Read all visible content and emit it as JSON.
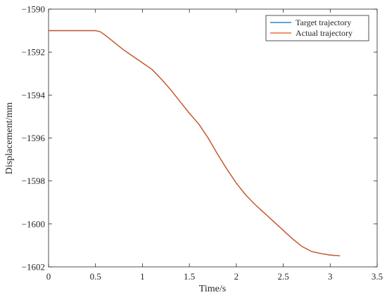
{
  "chart_data": {
    "type": "line",
    "xlabel": "Time/s",
    "ylabel": "Displacement/mm",
    "xlim": [
      0,
      3.5
    ],
    "ylim": [
      -1602,
      -1590
    ],
    "xticks": [
      0,
      0.5,
      1,
      1.5,
      2,
      2.5,
      3,
      3.5
    ],
    "xtick_labels": [
      "0",
      "0.5",
      "1",
      "1.5",
      "2",
      "2.5",
      "3",
      "3.5"
    ],
    "yticks": [
      -1602,
      -1600,
      -1598,
      -1596,
      -1594,
      -1592,
      -1590
    ],
    "ytick_labels": [
      "−1602",
      "−1600",
      "−1598",
      "−1596",
      "−1594",
      "−1592",
      "−1590"
    ],
    "grid": false,
    "legend_position": "top-right",
    "series": [
      {
        "name": "Target trajectory",
        "color": "#0072BD",
        "x": [
          0,
          0.1,
          0.2,
          0.3,
          0.4,
          0.5,
          0.55,
          0.6,
          0.7,
          0.8,
          0.9,
          1.0,
          1.1,
          1.2,
          1.3,
          1.4,
          1.5,
          1.6,
          1.7,
          1.8,
          1.9,
          2.0,
          2.1,
          2.2,
          2.3,
          2.4,
          2.5,
          2.6,
          2.7,
          2.8,
          2.9,
          3.0,
          3.1
        ],
        "y": [
          -1591.0,
          -1591.0,
          -1591.0,
          -1591.0,
          -1591.0,
          -1591.0,
          -1591.05,
          -1591.2,
          -1591.55,
          -1591.9,
          -1592.2,
          -1592.5,
          -1592.8,
          -1593.25,
          -1593.75,
          -1594.3,
          -1594.85,
          -1595.35,
          -1596.0,
          -1596.75,
          -1597.45,
          -1598.1,
          -1598.65,
          -1599.1,
          -1599.5,
          -1599.9,
          -1600.3,
          -1600.7,
          -1601.05,
          -1601.28,
          -1601.38,
          -1601.45,
          -1601.48
        ]
      },
      {
        "name": "Actual trajectory",
        "color": "#D95319",
        "x": [
          0,
          0.1,
          0.2,
          0.3,
          0.4,
          0.5,
          0.55,
          0.6,
          0.7,
          0.8,
          0.9,
          1.0,
          1.1,
          1.2,
          1.3,
          1.4,
          1.5,
          1.6,
          1.7,
          1.8,
          1.9,
          2.0,
          2.1,
          2.2,
          2.3,
          2.4,
          2.5,
          2.6,
          2.7,
          2.8,
          2.9,
          3.0,
          3.1
        ],
        "y": [
          -1591.0,
          -1591.0,
          -1591.0,
          -1591.0,
          -1591.0,
          -1591.0,
          -1591.05,
          -1591.2,
          -1591.55,
          -1591.9,
          -1592.2,
          -1592.5,
          -1592.8,
          -1593.25,
          -1593.75,
          -1594.3,
          -1594.85,
          -1595.35,
          -1596.0,
          -1596.75,
          -1597.45,
          -1598.1,
          -1598.65,
          -1599.1,
          -1599.5,
          -1599.9,
          -1600.3,
          -1600.7,
          -1601.05,
          -1601.28,
          -1601.38,
          -1601.45,
          -1601.48
        ]
      }
    ]
  }
}
